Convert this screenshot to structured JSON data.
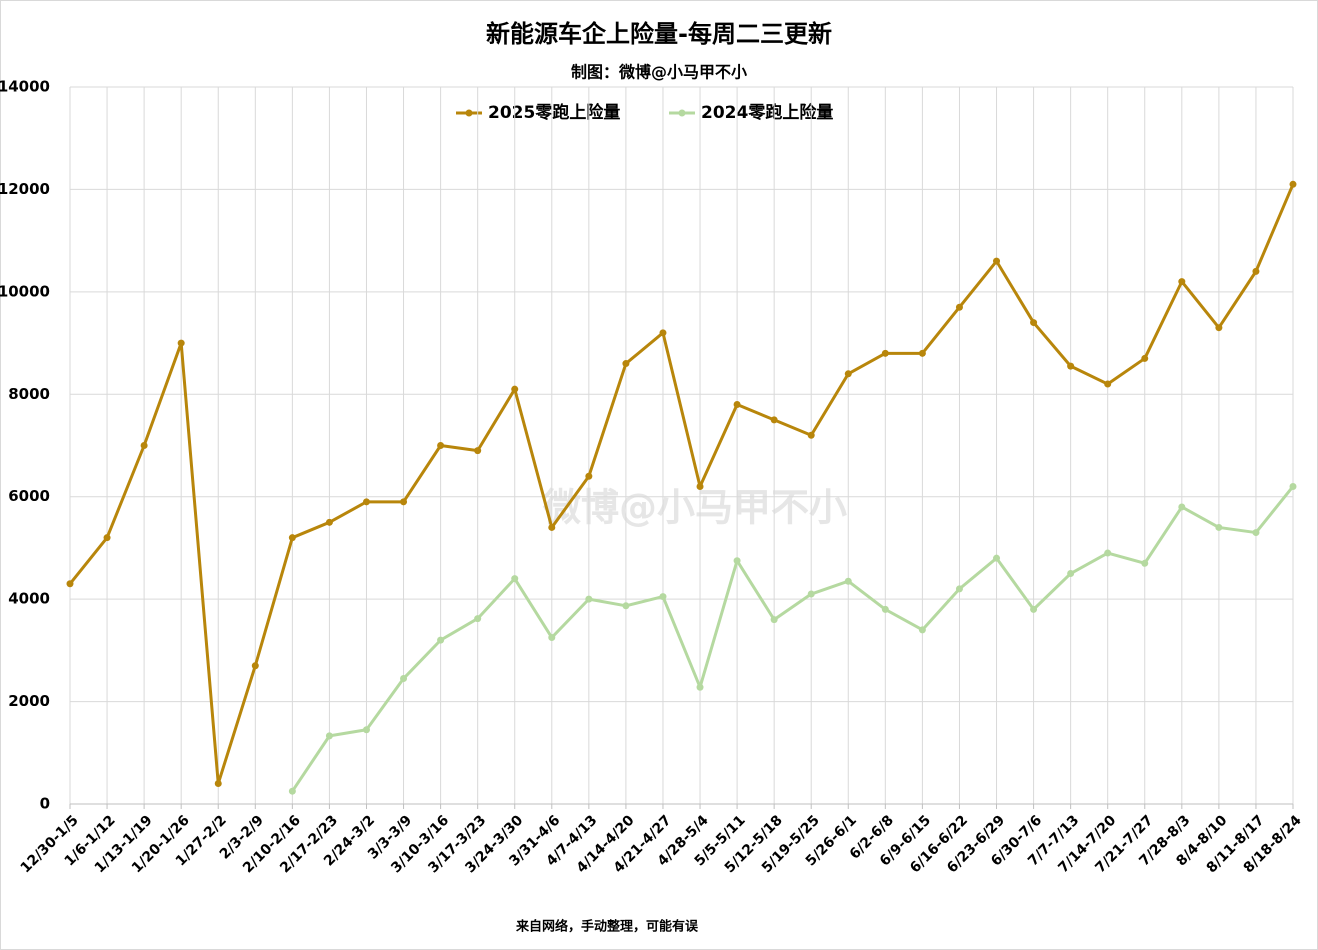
{
  "chart_data": {
    "type": "line",
    "title": "新能源车企上险量-每周二三更新",
    "subtitle": "制图：微博@小马甲不小",
    "watermark": "微博@小马甲不小",
    "footer": "来自网络，手动整理，可能有误",
    "categories": [
      "12/30-1/5",
      "1/6-1/12",
      "1/13-1/19",
      "1/20-1/26",
      "1/27-2/2",
      "2/3-2/9",
      "2/10-2/16",
      "2/17-2/23",
      "2/24-3/2",
      "3/3-3/9",
      "3/10-3/16",
      "3/17-3/23",
      "3/24-3/30",
      "3/31-4/6",
      "4/7-4/13",
      "4/14-4/20",
      "4/21-4/27",
      "4/28-5/4",
      "5/5-5/11",
      "5/12-5/18",
      "5/19-5/25",
      "5/26-6/1",
      "6/2-6/8",
      "6/9-6/15",
      "6/16-6/22",
      "6/23-6/29",
      "6/30-7/6",
      "7/7-7/13",
      "7/14-7/20",
      "7/21-7/27",
      "7/28-8/3",
      "8/4-8/10",
      "8/11-8/17",
      "8/18-8/24"
    ],
    "series": [
      {
        "name": "2025零跑上险量",
        "color": "#b8860b",
        "values": [
          4300,
          5200,
          7000,
          9000,
          400,
          2700,
          5200,
          5500,
          5900,
          5900,
          7000,
          6900,
          8100,
          5400,
          6400,
          8600,
          9200,
          6200,
          7800,
          7500,
          7200,
          8400,
          8800,
          8800,
          9700,
          10600,
          9400,
          8550,
          8200,
          8700,
          10200,
          9300,
          10400,
          12100
        ]
      },
      {
        "name": "2024零跑上险量",
        "color": "#b5d9a0",
        "values": [
          null,
          null,
          null,
          null,
          null,
          null,
          250,
          1330,
          1450,
          2450,
          3200,
          3620,
          4400,
          3250,
          4000,
          3870,
          4050,
          2280,
          4750,
          3600,
          4100,
          4350,
          3800,
          3400,
          4200,
          4800,
          3800,
          4500,
          4900,
          4700,
          5800,
          5400,
          5300,
          6200
        ]
      }
    ],
    "ylim": [
      0,
      14000
    ],
    "yticks": [
      0,
      2000,
      4000,
      6000,
      8000,
      10000,
      12000,
      14000
    ],
    "grid": true,
    "legend": "top"
  }
}
